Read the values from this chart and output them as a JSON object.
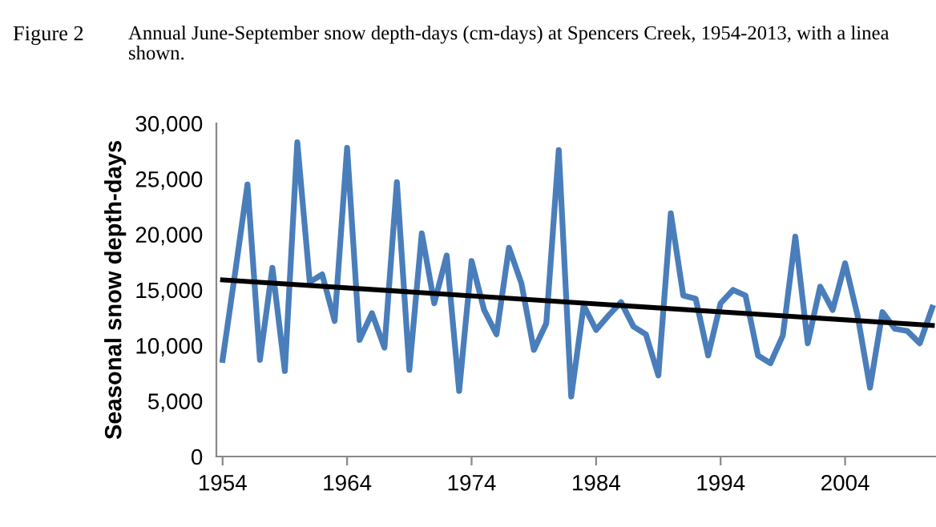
{
  "chart_data": {
    "type": "line",
    "title": "Figure 2",
    "subtitle": "Annual June-September snow depth-days (cm-days) at Spencers Creek, 1954-2013, with a linea\nshown.",
    "ylabel": "Seasonal snow depth-days",
    "x": [
      1954,
      1955,
      1956,
      1957,
      1958,
      1959,
      1960,
      1961,
      1962,
      1963,
      1964,
      1965,
      1966,
      1967,
      1968,
      1969,
      1970,
      1971,
      1972,
      1973,
      1974,
      1975,
      1976,
      1977,
      1978,
      1979,
      1980,
      1981,
      1982,
      1983,
      1984,
      1985,
      1986,
      1987,
      1988,
      1989,
      1990,
      1991,
      1992,
      1993,
      1994,
      1995,
      1996,
      1997,
      1998,
      1999,
      2000,
      2001,
      2002,
      2003,
      2004,
      2005,
      2006,
      2007,
      2008,
      2009,
      2010,
      2011
    ],
    "series": [
      {
        "color": "#4a7ebb",
        "values": [
          8700,
          16500,
          24500,
          8700,
          17000,
          7700,
          28300,
          15700,
          16400,
          12200,
          27800,
          10500,
          12900,
          9800,
          24700,
          7800,
          20100,
          13800,
          18100,
          5900,
          17600,
          13200,
          11000,
          18800,
          15600,
          9600,
          12000,
          27600,
          5400,
          13600,
          11400,
          12700,
          13900,
          11700,
          11000,
          7300,
          21900,
          14500,
          14200,
          9100,
          13800,
          15000,
          14500,
          9100,
          8400,
          10900,
          19800,
          10200,
          15300,
          13200,
          17400,
          12700,
          6200,
          13000,
          11500,
          11300,
          10200,
          13400
        ]
      },
      {
        "color": "#000000",
        "x": [
          1954,
          2011
        ],
        "values": [
          15900,
          11800
        ]
      }
    ],
    "xlim": [
      1953.5,
      2011.3
    ],
    "xticks": [
      1954,
      1964,
      1974,
      1984,
      1994,
      2004
    ],
    "ylim": [
      0,
      30000
    ],
    "yticks": [
      0,
      {
        "value": 5000,
        "label": "5,000"
      },
      {
        "value": 10000,
        "label": "10,000"
      },
      {
        "value": 15000,
        "label": "15,000"
      },
      {
        "value": 20000,
        "label": "20,000"
      },
      {
        "value": 25000,
        "label": "25,000"
      },
      {
        "value": 30000,
        "label": "30,000"
      }
    ],
    "grid": false,
    "marker": "none",
    "line_style": "solid"
  }
}
